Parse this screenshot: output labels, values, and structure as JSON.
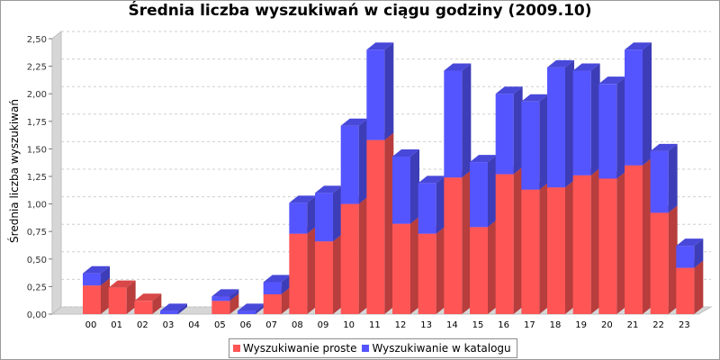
{
  "colors": {
    "proste": "#ff5555",
    "katalog": "#5555ff"
  },
  "chart_data": {
    "type": "bar",
    "stacked": true,
    "title": "Średnia liczba wyszukiwań w ciągu godziny (2009.10)",
    "xlabel": "",
    "ylabel": "Średnia liczba wyszukiwań",
    "ylim": [
      0,
      2.5
    ],
    "yticks": [
      "0,00",
      "0,25",
      "0,50",
      "0,75",
      "1,00",
      "1,25",
      "1,50",
      "1,75",
      "2,00",
      "2,25",
      "2,50"
    ],
    "grid": true,
    "legend_position": "bottom",
    "categories": [
      "00",
      "01",
      "02",
      "03",
      "04",
      "05",
      "06",
      "07",
      "08",
      "09",
      "10",
      "11",
      "12",
      "13",
      "14",
      "15",
      "16",
      "17",
      "18",
      "19",
      "20",
      "21",
      "22",
      "23"
    ],
    "series": [
      {
        "name": "Wyszukiwanie proste",
        "color": "#ff5555",
        "values": [
          0.26,
          0.24,
          0.12,
          0,
          0,
          0.12,
          0,
          0.18,
          0.73,
          0.66,
          1.0,
          1.58,
          0.82,
          0.73,
          1.24,
          0.79,
          1.27,
          1.13,
          1.15,
          1.26,
          1.23,
          1.35,
          0.92,
          0.42
        ]
      },
      {
        "name": "Wyszukiwanie w katalogu",
        "color": "#5555ff",
        "values": [
          0.11,
          0,
          0,
          0.03,
          0,
          0.04,
          0.03,
          0.11,
          0.28,
          0.44,
          0.71,
          0.82,
          0.61,
          0.46,
          0.97,
          0.59,
          0.73,
          0.8,
          1.09,
          0.95,
          0.86,
          1.05,
          0.56,
          0.2
        ]
      }
    ]
  }
}
